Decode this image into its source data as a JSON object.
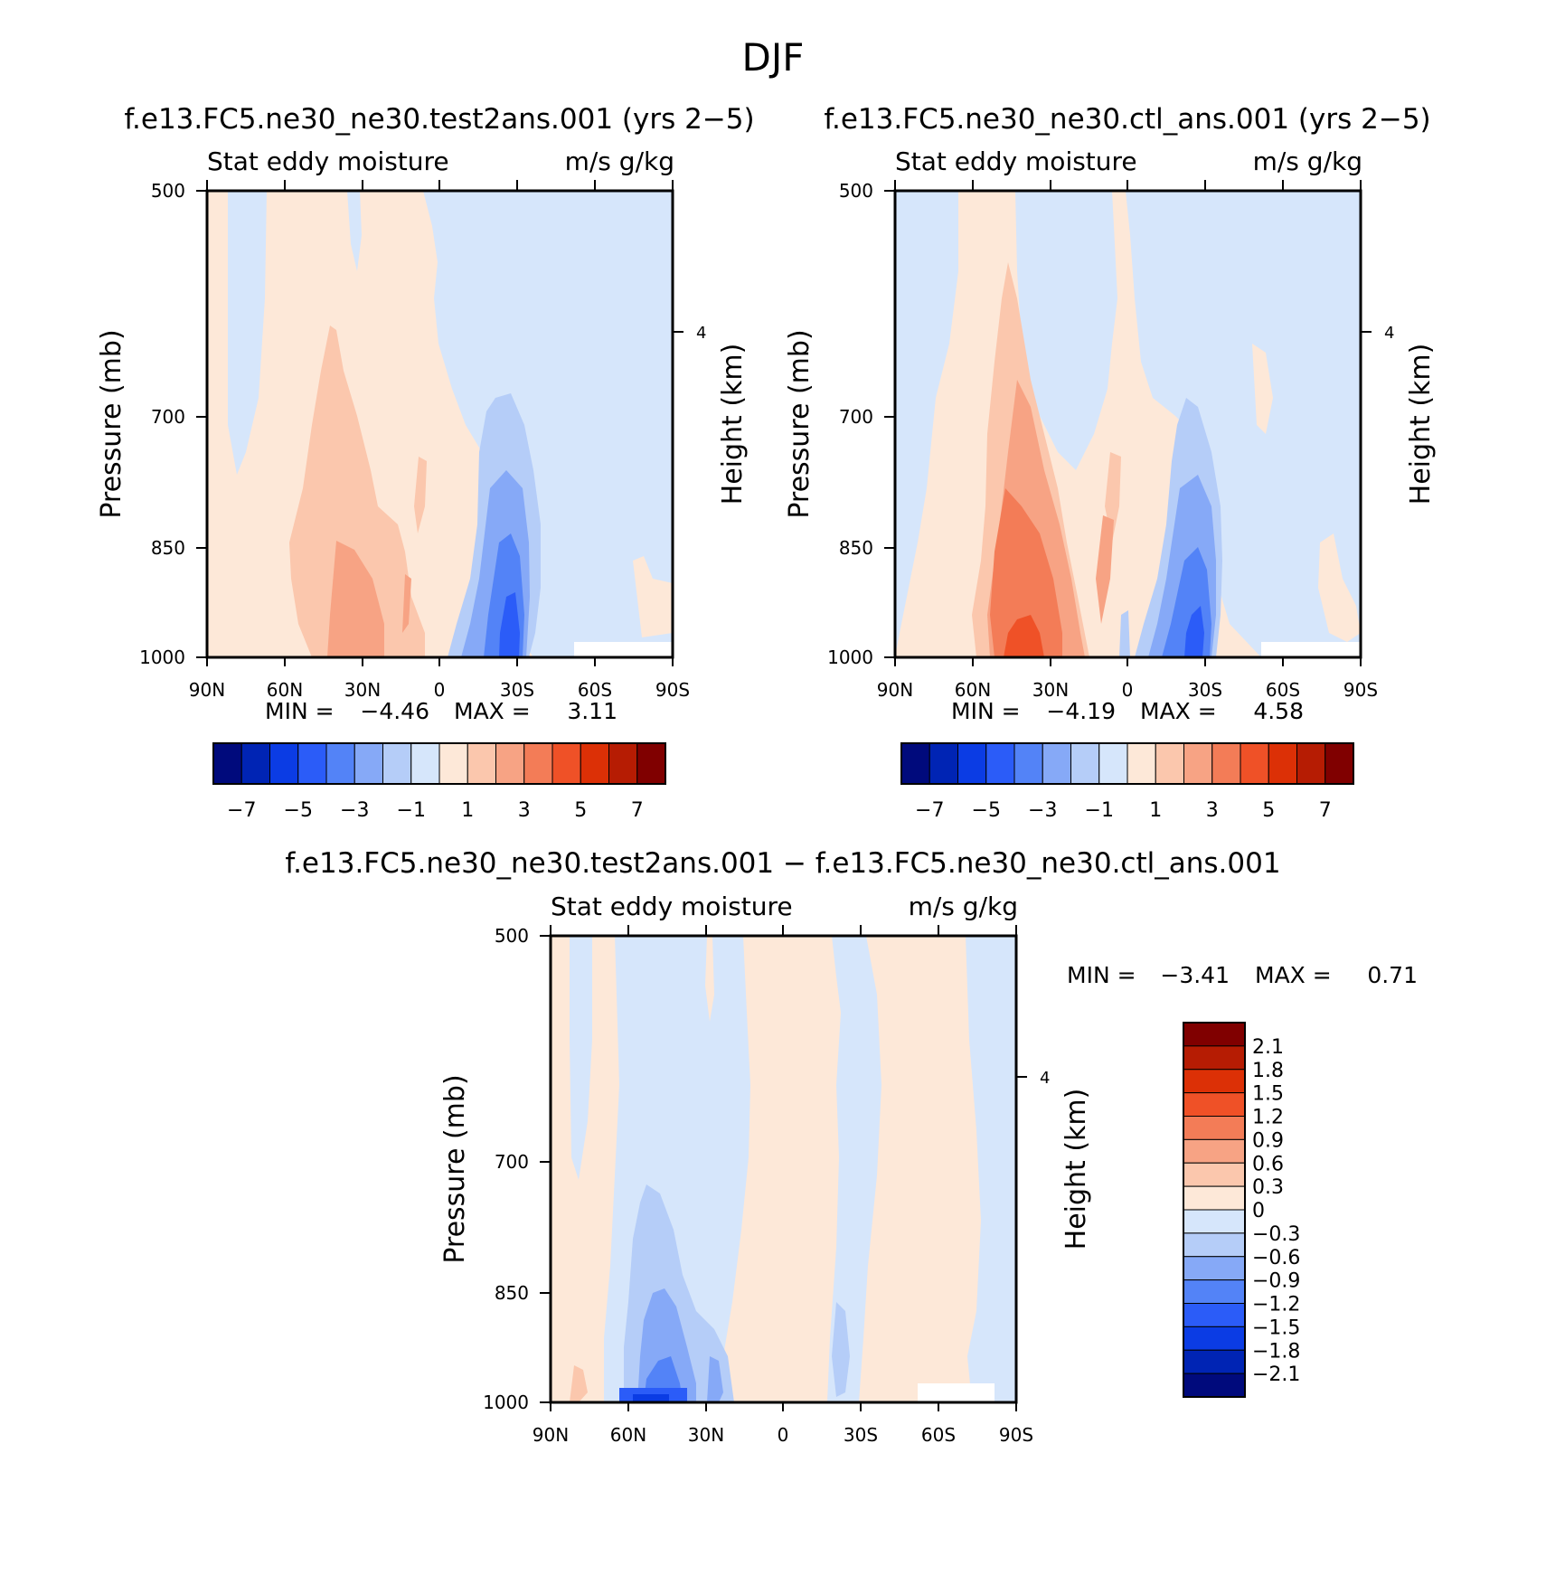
{
  "page_title": "DJF",
  "chart_data": [
    {
      "type": "heatmap",
      "title": "f.e13.FC5.ne30_ne30.test2ans.001 (yrs 2−5)",
      "subtitle_left": "Stat eddy moisture",
      "subtitle_right": "m/s g/kg",
      "xlabel": "",
      "ylabel": "Pressure (mb)",
      "ylabel_right": "Height (km)",
      "x_ticks": [
        "90N",
        "60N",
        "30N",
        "0",
        "30S",
        "60S",
        "90S"
      ],
      "y_ticks": [
        "500",
        "700",
        "850",
        "1000"
      ],
      "y_right_ticks": [
        "4"
      ],
      "ylim": [
        1000,
        500
      ],
      "stats": {
        "min_label": "MIN =",
        "min": "−4.46",
        "max_label": "MAX =",
        "max": "3.11"
      },
      "colorbar": {
        "orientation": "horizontal",
        "labels": [
          "−7",
          "−5",
          "−3",
          "−1",
          "1",
          "3",
          "5",
          "7"
        ],
        "colors": [
          "#000a7c",
          "#0024b4",
          "#0b3ce4",
          "#2b5cf8",
          "#5383f7",
          "#86a9f7",
          "#b5cdf8",
          "#d6e6fb",
          "#fde8d8",
          "#fbc7ad",
          "#f7a384",
          "#f37c57",
          "#ef5127",
          "#dc3006",
          "#b61c03",
          "#800000"
        ]
      }
    },
    {
      "type": "heatmap",
      "title": "f.e13.FC5.ne30_ne30.ctl_ans.001 (yrs 2−5)",
      "subtitle_left": "Stat eddy moisture",
      "subtitle_right": "m/s g/kg",
      "xlabel": "",
      "ylabel": "Pressure (mb)",
      "ylabel_right": "Height (km)",
      "x_ticks": [
        "90N",
        "60N",
        "30N",
        "0",
        "30S",
        "60S",
        "90S"
      ],
      "y_ticks": [
        "500",
        "700",
        "850",
        "1000"
      ],
      "y_right_ticks": [
        "4"
      ],
      "ylim": [
        1000,
        500
      ],
      "stats": {
        "min_label": "MIN =",
        "min": "−4.19",
        "max_label": "MAX =",
        "max": "4.58"
      },
      "colorbar": {
        "orientation": "horizontal",
        "labels": [
          "−7",
          "−5",
          "−3",
          "−1",
          "1",
          "3",
          "5",
          "7"
        ],
        "colors": [
          "#000a7c",
          "#0024b4",
          "#0b3ce4",
          "#2b5cf8",
          "#5383f7",
          "#86a9f7",
          "#b5cdf8",
          "#d6e6fb",
          "#fde8d8",
          "#fbc7ad",
          "#f7a384",
          "#f37c57",
          "#ef5127",
          "#dc3006",
          "#b61c03",
          "#800000"
        ]
      }
    },
    {
      "type": "heatmap",
      "title": "f.e13.FC5.ne30_ne30.test2ans.001 − f.e13.FC5.ne30_ne30.ctl_ans.001",
      "subtitle_left": "Stat eddy moisture",
      "subtitle_right": "m/s g/kg",
      "xlabel": "",
      "ylabel": "Pressure (mb)",
      "ylabel_right": "Height (km)",
      "x_ticks": [
        "90N",
        "60N",
        "30N",
        "0",
        "30S",
        "60S",
        "90S"
      ],
      "y_ticks": [
        "500",
        "700",
        "850",
        "1000"
      ],
      "y_right_ticks": [
        "4"
      ],
      "ylim": [
        1000,
        500
      ],
      "stats": {
        "min_label": "MIN =",
        "min": "−3.41",
        "max_label": "MAX =",
        "max": "0.71"
      },
      "colorbar": {
        "orientation": "vertical",
        "labels": [
          "2.1",
          "1.8",
          "1.5",
          "1.2",
          "0.9",
          "0.6",
          "0.3",
          "0",
          "−0.3",
          "−0.6",
          "−0.9",
          "−1.2",
          "−1.5",
          "−1.8",
          "−2.1"
        ],
        "colors": [
          "#800000",
          "#b61c03",
          "#dc3006",
          "#ef5127",
          "#f37c57",
          "#f7a384",
          "#fbc7ad",
          "#fde8d8",
          "#d6e6fb",
          "#b5cdf8",
          "#86a9f7",
          "#5383f7",
          "#2b5cf8",
          "#0b3ce4",
          "#0024b4",
          "#000a7c"
        ]
      }
    }
  ]
}
